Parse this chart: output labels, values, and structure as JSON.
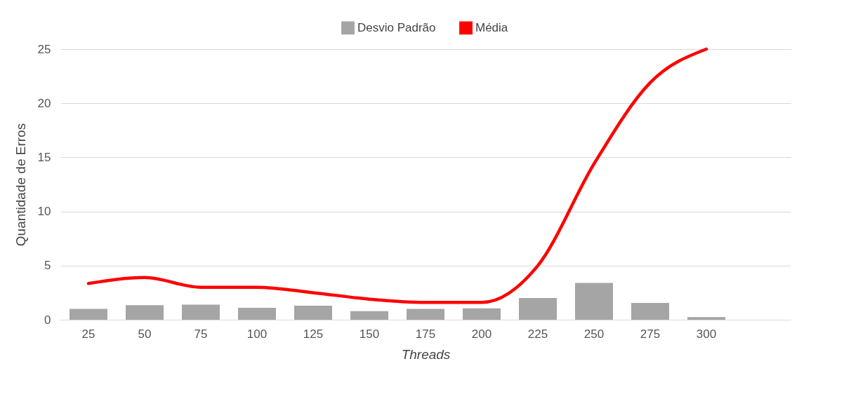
{
  "chart_data": {
    "type": "bar",
    "xlabel": "Threads",
    "ylabel": "Quantidade de Erros",
    "categories": [
      "25",
      "50",
      "75",
      "100",
      "125",
      "150",
      "175",
      "200",
      "225",
      "250",
      "275",
      "300",
      null
    ],
    "series": [
      {
        "name": "Desvio Padrão",
        "color": "#a5a5a5",
        "values": [
          1.0,
          1.35,
          1.4,
          1.1,
          1.3,
          0.8,
          1.0,
          1.05,
          2.0,
          3.4,
          1.55,
          0.25,
          null
        ]
      },
      {
        "name": "Média",
        "type": "line",
        "color": "#ff0000",
        "values": [
          3.35,
          3.9,
          3.0,
          3.0,
          2.5,
          1.9,
          1.6,
          1.6,
          5.0,
          14.4,
          21.9,
          25,
          null
        ]
      }
    ],
    "ylim": [
      0,
      25
    ],
    "yticks": [
      0,
      5,
      10,
      15,
      20,
      25
    ],
    "grid": "y",
    "legend": "top"
  }
}
